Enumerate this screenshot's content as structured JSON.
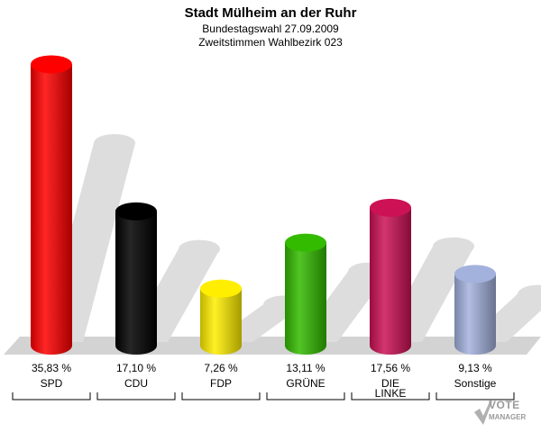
{
  "title": "Stadt Mülheim an der Ruhr",
  "subtitle1": "Bundestagswahl 27.09.2009",
  "subtitle2": "Zweitstimmen Wahlbezirk 023",
  "logo": {
    "line1": "VOTE",
    "line2": "MANAGER",
    "icon": "check-mark-icon"
  },
  "chart_data": {
    "type": "bar",
    "categories": [
      "SPD",
      "CDU",
      "FDP",
      "GRÜNE",
      "DIE LINKE",
      "Sonstige"
    ],
    "category_lines": [
      [
        "SPD"
      ],
      [
        "CDU"
      ],
      [
        "FDP"
      ],
      [
        "GRÜNE"
      ],
      [
        "DIE",
        "LINKE"
      ],
      [
        "Sonstige"
      ]
    ],
    "values": [
      35.83,
      17.1,
      7.26,
      13.11,
      17.56,
      9.13
    ],
    "value_labels": [
      "35,83 %",
      "17,10 %",
      "7,26 %",
      "13,11 %",
      "17,56 %",
      "9,13 %"
    ],
    "colors": [
      "#ff0000",
      "#000000",
      "#ffee00",
      "#33bb00",
      "#cc1155",
      "#a3b1dd"
    ],
    "ylim": [
      0,
      36
    ],
    "grid": false,
    "legend": "none"
  }
}
